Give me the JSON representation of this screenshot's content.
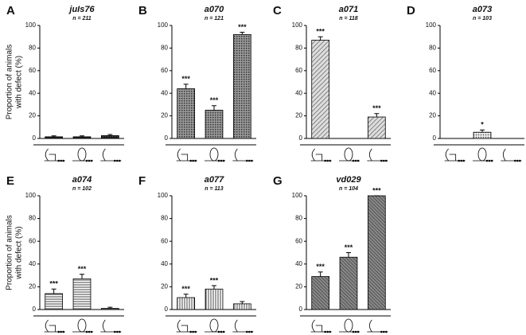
{
  "chart_data": [
    {
      "type": "bar",
      "panel": "A",
      "title": "juIs76",
      "subtitle": "n = 211",
      "ylabel": [
        "Proportion of animals",
        "with defect (%)"
      ],
      "categories": [
        null,
        null,
        null
      ],
      "values": [
        1.5,
        1.5,
        2.5
      ],
      "errors": [
        0.8,
        0.8,
        1
      ],
      "annotations": [
        null,
        null,
        null
      ],
      "pattern": "solid",
      "ylim": [
        0,
        100
      ],
      "yticks": [
        0,
        20,
        40,
        60,
        80,
        100
      ]
    },
    {
      "type": "bar",
      "panel": "B",
      "title": "a070",
      "subtitle": "n = 121",
      "categories": [
        null,
        null,
        null
      ],
      "values": [
        44,
        25,
        92
      ],
      "errors": [
        4,
        4,
        2
      ],
      "annotations": [
        "***",
        "***",
        "***"
      ],
      "pattern": "checker",
      "ylim": [
        0,
        100
      ],
      "yticks": [
        0,
        20,
        40,
        60,
        80,
        100
      ]
    },
    {
      "type": "bar",
      "panel": "C",
      "title": "a071",
      "subtitle": "n = 118",
      "categories": [
        null,
        null,
        null
      ],
      "values": [
        87,
        0,
        19
      ],
      "errors": [
        3,
        0,
        3
      ],
      "annotations": [
        "***",
        null,
        "***"
      ],
      "pattern": "diagonal",
      "ylim": [
        0,
        100
      ],
      "yticks": [
        0,
        20,
        40,
        60,
        80,
        100
      ]
    },
    {
      "type": "bar",
      "panel": "D",
      "title": "a073",
      "subtitle": "n = 103",
      "categories": [
        null,
        null,
        null
      ],
      "values": [
        0,
        5.5,
        0
      ],
      "errors": [
        0,
        2,
        0
      ],
      "annotations": [
        null,
        "*",
        null
      ],
      "pattern": "dots",
      "ylim": [
        0,
        100
      ],
      "yticks": [
        0,
        20,
        40,
        60,
        80,
        100
      ]
    },
    {
      "type": "bar",
      "panel": "E",
      "title": "a074",
      "subtitle": "n = 102",
      "ylabel": [
        "Proportion of animals",
        "with defect (%)"
      ],
      "categories": [
        null,
        null,
        null
      ],
      "values": [
        14,
        27,
        1
      ],
      "errors": [
        4,
        4,
        1
      ],
      "annotations": [
        "***",
        "***",
        null
      ],
      "pattern": "horizontal",
      "ylim": [
        0,
        100
      ],
      "yticks": [
        0,
        20,
        40,
        60,
        80,
        100
      ]
    },
    {
      "type": "bar",
      "panel": "F",
      "title": "a077",
      "subtitle": "n = 113",
      "categories": [
        null,
        null,
        null
      ],
      "values": [
        10.5,
        18,
        5
      ],
      "errors": [
        3,
        3,
        2
      ],
      "annotations": [
        "***",
        "***",
        null
      ],
      "pattern": "vertical",
      "ylim": [
        0,
        100
      ],
      "yticks": [
        0,
        20,
        40,
        60,
        80,
        100
      ]
    },
    {
      "type": "bar",
      "panel": "G",
      "title": "vd029",
      "subtitle": "n = 104",
      "categories": [
        null,
        null,
        null
      ],
      "values": [
        29,
        46,
        100
      ],
      "errors": [
        4,
        4,
        0
      ],
      "annotations": [
        "***",
        "***",
        "***"
      ],
      "pattern": "diagonal2",
      "ylim": [
        0,
        100
      ],
      "yticks": [
        0,
        20,
        40,
        60,
        80,
        100
      ]
    }
  ]
}
